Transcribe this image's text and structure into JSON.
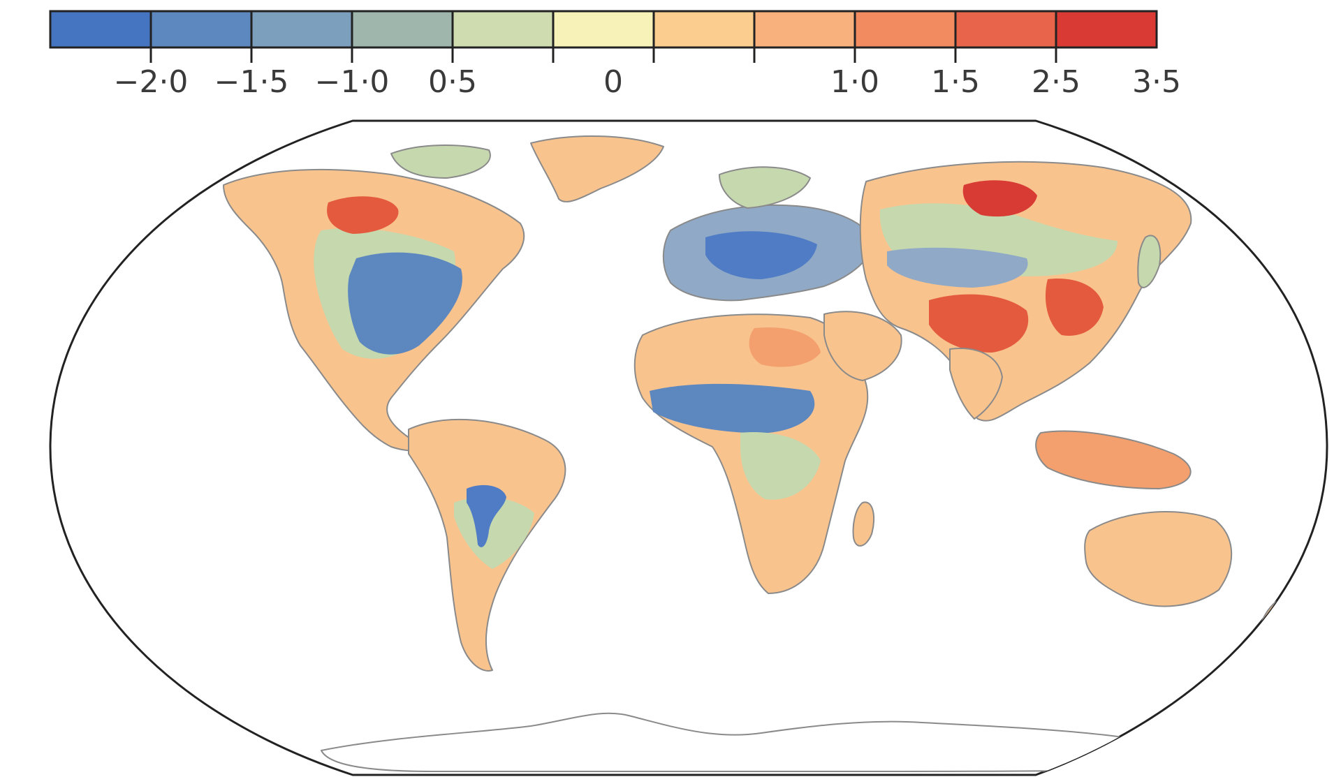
{
  "legend": {
    "bins": [
      {
        "color": "#4575c0"
      },
      {
        "color": "#5d87bf"
      },
      {
        "color": "#7d9fbe"
      },
      {
        "color": "#9fb6ad"
      },
      {
        "color": "#cfdcb0"
      },
      {
        "color": "#f6f2b8"
      },
      {
        "color": "#fbcd8f"
      },
      {
        "color": "#f8b07c"
      },
      {
        "color": "#f28b60"
      },
      {
        "color": "#e8644a"
      },
      {
        "color": "#d93b34"
      }
    ],
    "tick_labels": [
      "−2·0",
      "−1·5",
      "−1·0",
      "0·5",
      "",
      "0",
      "",
      "1·0",
      "1·5",
      "2·5",
      "3·5"
    ]
  },
  "map": {
    "projection": "Robinson",
    "land_colors": {
      "base": "#f9c38e",
      "green": "#c6d8ae",
      "blue_light": "#8fa9c6",
      "blue": "#4f7cc4",
      "orange": "#f3a06e",
      "red": "#e45a3e",
      "red_dark": "#d83a34",
      "outline": "#8a8a8a"
    }
  }
}
